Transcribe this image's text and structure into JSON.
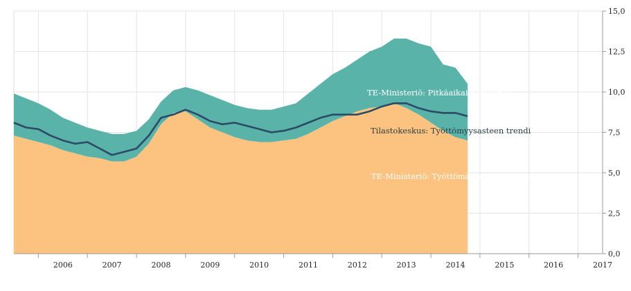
{
  "chart_data": {
    "type": "area",
    "title": "",
    "xlabel": "",
    "ylabel": "",
    "ylim": [
      0,
      15
    ],
    "yticks": [
      "0,0",
      "2,5",
      "5,0",
      "7,5",
      "10,0",
      "12,5",
      "15,0"
    ],
    "ytick_values": [
      0,
      2.5,
      5,
      7.5,
      10,
      12.5,
      15
    ],
    "xticks": [
      "2006",
      "2007",
      "2008",
      "2009",
      "2010",
      "2011",
      "2012",
      "2013",
      "2014",
      "2015",
      "2016",
      "2017"
    ],
    "x_start": 2005.5,
    "x_step": 0.25,
    "series": [
      {
        "name": "TE-Ministeriö: Työttömät pl. pitkäaikaistyöttömät",
        "color": "#fcc27f",
        "role": "stacked-area-bottom",
        "values": [
          7.3,
          7.1,
          6.9,
          6.7,
          6.4,
          6.2,
          6.0,
          5.9,
          5.7,
          5.7,
          6.0,
          6.8,
          8.0,
          8.7,
          8.8,
          8.3,
          7.8,
          7.5,
          7.2,
          7.0,
          6.9,
          6.9,
          7.0,
          7.1,
          7.4,
          7.8,
          8.2,
          8.5,
          8.8,
          9.0,
          9.1,
          9.3,
          9.0,
          8.6,
          8.1,
          7.6,
          7.2,
          7.0
        ]
      },
      {
        "name": "TE-Ministeriö: Pitkäaikaistyöttömät",
        "color": "#5ab3a8",
        "role": "stacked-area-top",
        "values": [
          2.6,
          2.5,
          2.4,
          2.2,
          2.0,
          1.9,
          1.8,
          1.7,
          1.7,
          1.7,
          1.6,
          1.5,
          1.4,
          1.4,
          1.5,
          1.8,
          2.0,
          2.0,
          2.0,
          2.0,
          2.0,
          2.0,
          2.1,
          2.2,
          2.5,
          2.7,
          2.9,
          3.0,
          3.2,
          3.5,
          3.7,
          4.0,
          4.3,
          4.4,
          4.7,
          4.1,
          4.3,
          3.5
        ]
      },
      {
        "name": "Tilastokeskus: Työttömyysasteen trendi",
        "color": "#2b4a66",
        "role": "line",
        "values": [
          8.1,
          7.8,
          7.7,
          7.3,
          7.0,
          6.8,
          6.9,
          6.5,
          6.1,
          6.3,
          6.5,
          7.3,
          8.4,
          8.6,
          8.9,
          8.6,
          8.2,
          8.0,
          8.1,
          7.9,
          7.7,
          7.5,
          7.6,
          7.8,
          8.1,
          8.4,
          8.6,
          8.6,
          8.6,
          8.8,
          9.1,
          9.3,
          9.3,
          9.0,
          8.8,
          8.7,
          8.7,
          8.5
        ]
      }
    ],
    "annotations": {
      "long_term": "TE-Ministeriö: Pitkäaikaistyöttömät",
      "trend": "Tilastokeskus: Työttömyysasteen trendi",
      "short_term": "TE-Ministeriö: Työttömät pl. pitkäaikaistyöttömät"
    }
  }
}
